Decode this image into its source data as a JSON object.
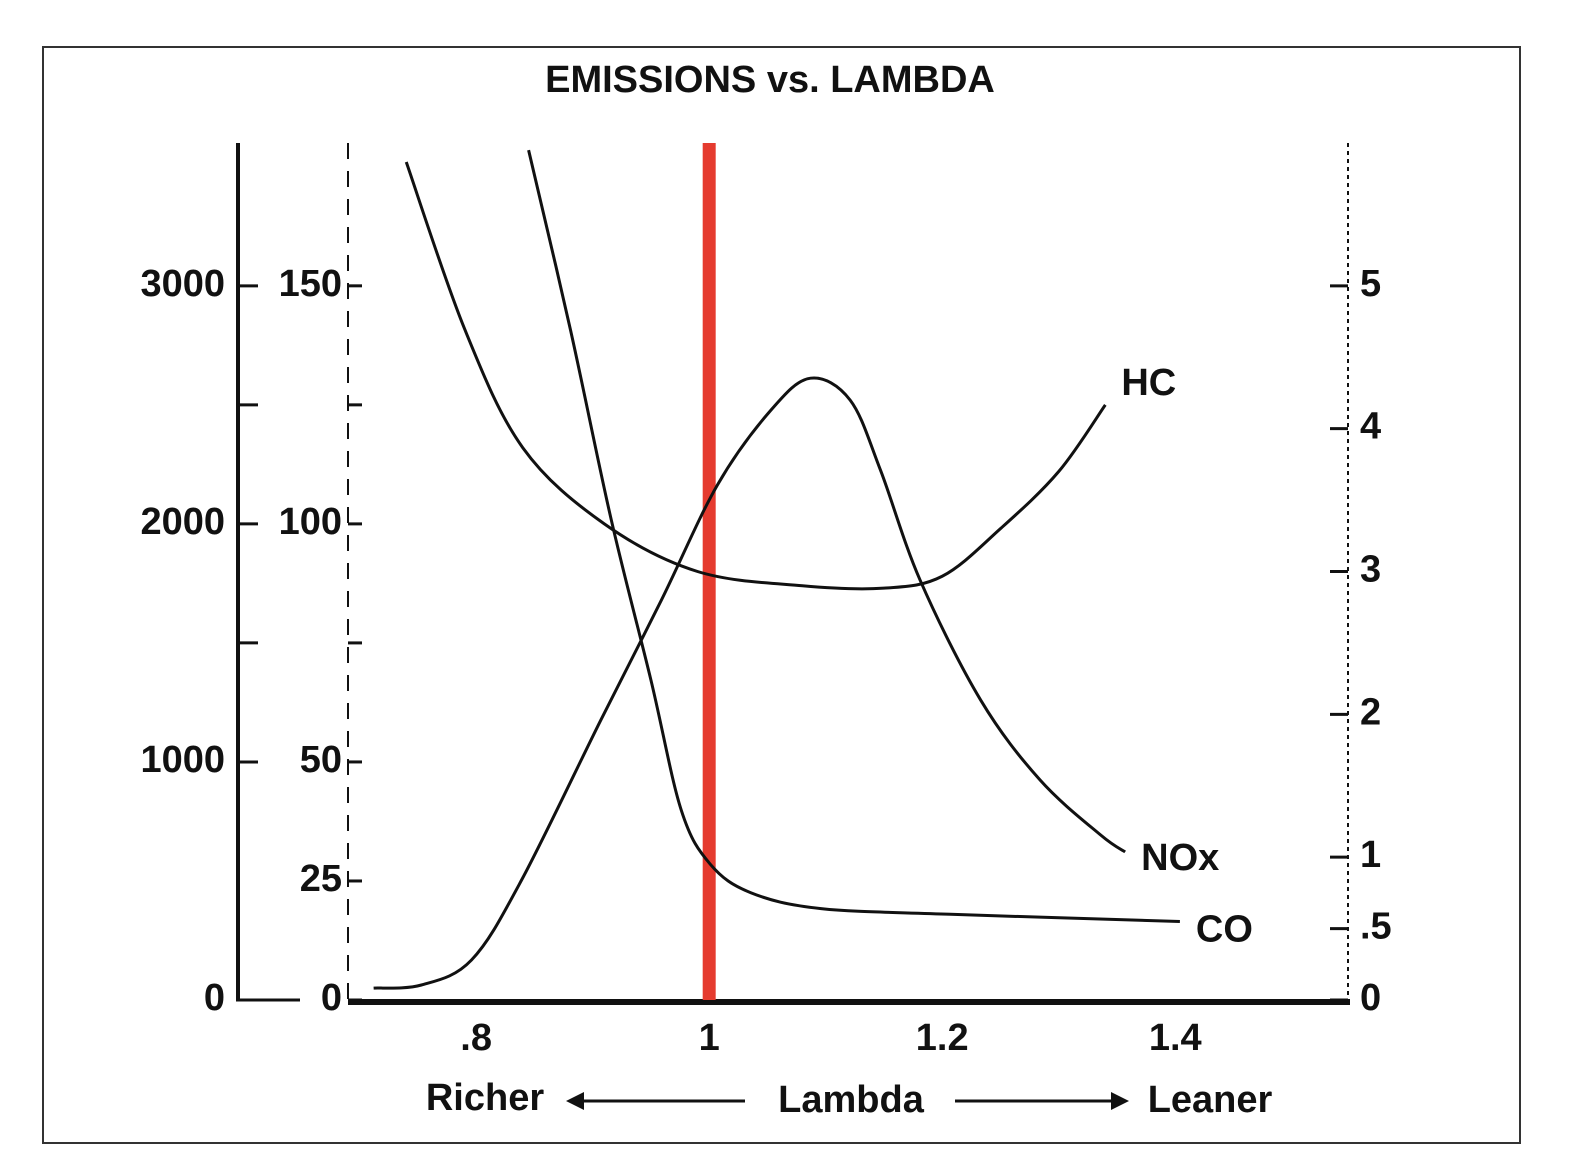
{
  "chart_data": {
    "type": "line",
    "title": "EMISSIONS vs. LAMBDA",
    "x_label": "Lambda",
    "x_left_label": "Richer",
    "x_right_label": "Leaner",
    "xlim": [
      0.69,
      1.55
    ],
    "xticks": [
      {
        "value": 0.8,
        "label": ".8"
      },
      1,
      1.2,
      1.4
    ],
    "ylim": [
      0,
      3600
    ],
    "yticks": [
      0,
      1000,
      2000,
      3000
    ],
    "yminorticks": [
      1500,
      2500
    ],
    "y2lim": [
      0,
      180
    ],
    "y2ticks": [
      0,
      25,
      50,
      100,
      150
    ],
    "y2minorticks": [
      75,
      125
    ],
    "y3lim": [
      0,
      6
    ],
    "y3ticks": [
      0,
      {
        "value": 0.5,
        "label": ".5"
      },
      1,
      2,
      3,
      4,
      5
    ],
    "reference_line": {
      "x": 1,
      "color": "#e53b2f"
    },
    "series": [
      {
        "name": "HC",
        "color": "#111111",
        "axis": "y2",
        "x": [
          0.74,
          0.79,
          0.84,
          0.91,
          0.99,
          1.08,
          1.15,
          1.2,
          1.25,
          1.3,
          1.34
        ],
        "values": [
          176,
          141,
          116,
          100,
          90,
          87,
          86.5,
          89,
          99,
          111,
          125
        ]
      },
      {
        "name": "NOx",
        "color": "#111111",
        "axis": "y",
        "x": [
          0.712,
          0.753,
          0.796,
          0.839,
          0.907,
          0.959,
          1.007,
          1.053,
          1.087,
          1.121,
          1.147,
          1.181,
          1.233,
          1.284,
          1.336,
          1.357
        ],
        "values": [
          50,
          63,
          168,
          504,
          1176,
          1680,
          2163,
          2478,
          2612,
          2520,
          2226,
          1764,
          1260,
          924,
          693,
          622
        ]
      },
      {
        "name": "CO",
        "color": "#111111",
        "axis": "y3",
        "x": [
          0.845,
          0.881,
          0.916,
          0.95,
          0.976,
          1.001,
          1.036,
          1.096,
          1.207,
          1.404
        ],
        "values": [
          5.95,
          4.69,
          3.36,
          2.24,
          1.33,
          0.95,
          0.75,
          0.64,
          0.6,
          0.55
        ]
      }
    ]
  }
}
